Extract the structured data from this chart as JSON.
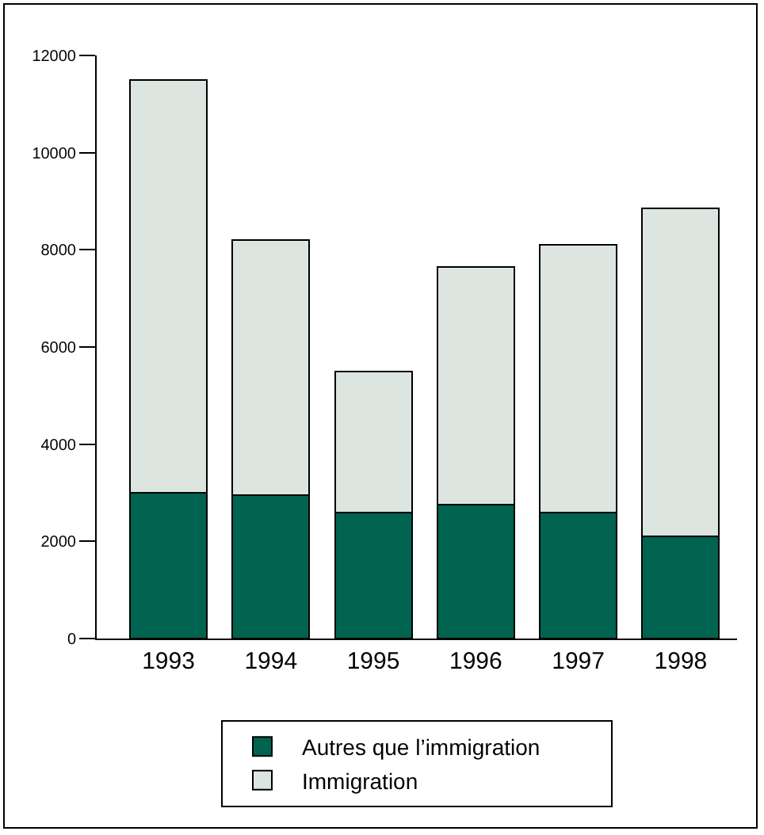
{
  "chart_data": {
    "type": "bar",
    "stacked": true,
    "categories": [
      "1993",
      "1994",
      "1995",
      "1996",
      "1997",
      "1998"
    ],
    "series": [
      {
        "name": "Autres que l’immigration",
        "color": "#006450",
        "values": [
          3000,
          2950,
          2600,
          2750,
          2600,
          2100
        ]
      },
      {
        "name": "Immigration",
        "color": "#dde5e0",
        "values": [
          8500,
          5250,
          2900,
          4900,
          5500,
          6750
        ]
      }
    ],
    "ylim": [
      0,
      12000
    ],
    "yticks": [
      0,
      2000,
      4000,
      6000,
      8000,
      10000,
      12000
    ],
    "grid": false,
    "legend": "bottom"
  }
}
